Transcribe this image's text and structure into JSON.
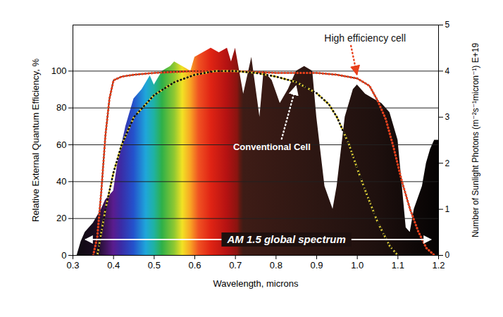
{
  "chart_data": {
    "type": "line",
    "xlabel": "Wavelength, microns",
    "ylabel": "Relative External Quantum Efficiency, %",
    "y2label": "Number of Sunlight Photons (m⁻²s⁻¹micron⁻¹) E+19",
    "xlim": [
      0.3,
      1.2
    ],
    "xticks": [
      0.3,
      0.4,
      0.5,
      0.6,
      0.7,
      0.8,
      0.9,
      {
        "value": 1,
        "label": "1.0"
      },
      1.1,
      1.2
    ],
    "ylim": [
      0,
      125
    ],
    "yticks": [
      0,
      20,
      40,
      60,
      80,
      100
    ],
    "y2lim": [
      0,
      5
    ],
    "y2ticks": [
      0,
      1,
      2,
      3,
      4,
      5
    ],
    "grid": true,
    "series": [
      {
        "name": "AM 1.5 global spectrum",
        "type": "area",
        "axis": "y2",
        "color": "rainbow",
        "x": [
          0.3,
          0.31,
          0.32,
          0.33,
          0.35,
          0.37,
          0.38,
          0.39,
          0.4,
          0.41,
          0.43,
          0.45,
          0.47,
          0.49,
          0.5,
          0.52,
          0.54,
          0.55,
          0.57,
          0.59,
          0.6,
          0.62,
          0.64,
          0.66,
          0.68,
          0.69,
          0.7,
          0.72,
          0.74,
          0.76,
          0.77,
          0.79,
          0.81,
          0.83,
          0.85,
          0.87,
          0.89,
          0.9,
          0.92,
          0.94,
          0.95,
          0.97,
          0.99,
          1.0,
          1.02,
          1.04,
          1.06,
          1.08,
          1.1,
          1.12,
          1.13,
          1.14,
          1.16,
          1.17,
          1.18,
          1.19,
          1.2
        ],
        "values": [
          0,
          0,
          0.3,
          0.5,
          0.7,
          1.0,
          1.2,
          1.3,
          1.4,
          2.0,
          2.8,
          3.4,
          3.6,
          3.9,
          3.7,
          4.0,
          4.1,
          4.2,
          4.1,
          4.0,
          4.3,
          4.4,
          4.5,
          4.4,
          4.5,
          4.2,
          4.5,
          3.5,
          4.3,
          3.0,
          4.0,
          3.8,
          3.3,
          3.6,
          4.0,
          4.1,
          4.0,
          3.0,
          1.5,
          1.0,
          1.5,
          3.0,
          3.6,
          3.7,
          3.5,
          3.4,
          3.3,
          3.1,
          2.5,
          0.6,
          0.5,
          1.0,
          1.5,
          2.0,
          2.3,
          2.5,
          2.5
        ]
      },
      {
        "name": "High efficiency cell",
        "type": "line",
        "color": "#e8401c",
        "line_style": "dotted",
        "x": [
          0.35,
          0.36,
          0.37,
          0.38,
          0.39,
          0.4,
          0.42,
          0.45,
          0.5,
          0.6,
          0.7,
          0.8,
          0.9,
          0.95,
          1.0,
          1.03,
          1.05,
          1.07,
          1.09,
          1.11,
          1.13,
          1.15,
          1.17,
          1.19
        ],
        "values": [
          0,
          10,
          35,
          65,
          85,
          95,
          97,
          98,
          99,
          100,
          100,
          99,
          99,
          98,
          96,
          92,
          84,
          74,
          58,
          40,
          25,
          13,
          4,
          0
        ]
      },
      {
        "name": "Conventional Cell",
        "type": "line",
        "color": "#f2dc3c",
        "line_style": "dashed",
        "x": [
          0.36,
          0.38,
          0.4,
          0.42,
          0.45,
          0.5,
          0.55,
          0.6,
          0.65,
          0.7,
          0.75,
          0.8,
          0.85,
          0.9,
          0.93,
          0.95,
          0.98,
          1.0,
          1.02,
          1.05,
          1.08,
          1.1
        ],
        "values": [
          0,
          25,
          45,
          60,
          75,
          87,
          94,
          98,
          100,
          100,
          99,
          97,
          94,
          88,
          82,
          75,
          60,
          47,
          35,
          18,
          5,
          0
        ]
      }
    ]
  }
}
